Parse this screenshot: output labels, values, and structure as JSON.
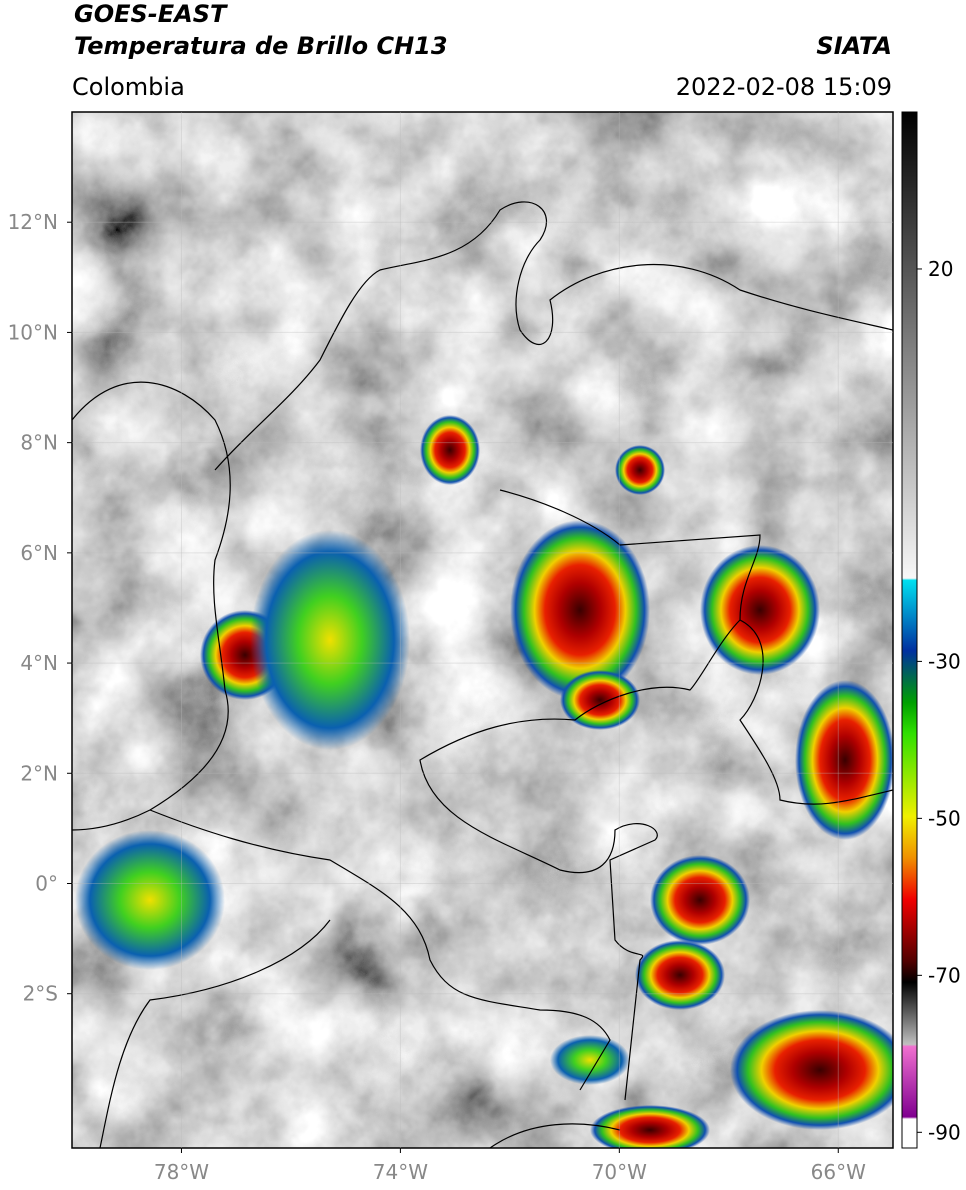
{
  "chart_data": {
    "type": "map",
    "title": "GOES-EAST",
    "subtitle": "Temperatura de Brillo CH13",
    "source": "SIATA",
    "region": "Colombia",
    "datetime": "2022-02-08 15:09",
    "xlim": [
      -80,
      -65
    ],
    "xticks": [
      {
        "value": -78,
        "label": "78°W"
      },
      {
        "value": -74,
        "label": "74°W"
      },
      {
        "value": -70,
        "label": "70°W"
      },
      {
        "value": -66,
        "label": "66°W"
      }
    ],
    "ylim": [
      -4.8,
      14
    ],
    "yticks": [
      {
        "value": 12,
        "label": "12°N"
      },
      {
        "value": 10,
        "label": "10°N"
      },
      {
        "value": 8,
        "label": "8°N"
      },
      {
        "value": 6,
        "label": "6°N"
      },
      {
        "value": 4,
        "label": "4°N"
      },
      {
        "value": 2,
        "label": "2°N"
      },
      {
        "value": 0,
        "label": "0°"
      },
      {
        "value": -2,
        "label": "2°S"
      }
    ],
    "colorbar": {
      "lim": [
        -92,
        40
      ],
      "ticks": [
        20,
        -30,
        -50,
        -70,
        -90
      ]
    }
  }
}
